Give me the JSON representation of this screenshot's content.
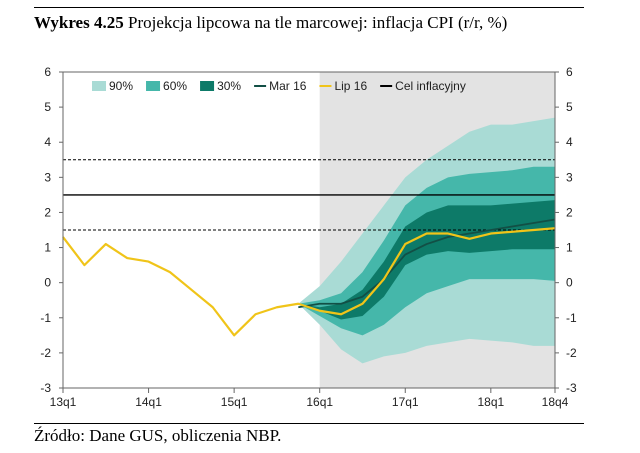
{
  "header": {
    "title_bold": "Wykres 4.25",
    "title_rest": " Projekcja lipcowa na tle marcowej: inflacja CPI (r/r, %)"
  },
  "footer": {
    "source": "Źródło: Dane GUS, obliczenia NBP."
  },
  "colors": {
    "band90": "#a9dbd5",
    "band60": "#45b7aa",
    "band30": "#0d7a68",
    "mar16": "#124f45",
    "lip16": "#f0c419",
    "target": "#000000",
    "shade": "#e3e3e3"
  },
  "chart_data": {
    "type": "line",
    "title": "Projekcja lipcowa na tle marcowej: inflacja CPI",
    "ylabel": "r/r, %",
    "ylim": [
      -3,
      6
    ],
    "yticks": [
      -3,
      -2,
      -1,
      0,
      1,
      2,
      3,
      4,
      5,
      6
    ],
    "x_range": [
      "13q1",
      "18q4"
    ],
    "x_ticks": [
      {
        "label": "13q1",
        "x": 0
      },
      {
        "label": "14q1",
        "x": 4
      },
      {
        "label": "15q1",
        "x": 8
      },
      {
        "label": "16q1",
        "x": 12
      },
      {
        "label": "17q1",
        "x": 16
      },
      {
        "label": "18q1",
        "x": 20
      },
      {
        "label": "18q4",
        "x": 23
      }
    ],
    "projection_start": "16q1",
    "legend": [
      "90%",
      "60%",
      "30%",
      "Mar 16",
      "Lip 16",
      "Cel inflacyjny"
    ],
    "target": {
      "value": 2.5,
      "lower": 1.5,
      "upper": 3.5
    },
    "quarters": [
      "13q1",
      "13q2",
      "13q3",
      "13q4",
      "14q1",
      "14q2",
      "14q3",
      "14q4",
      "15q1",
      "15q2",
      "15q3",
      "15q4",
      "16q1",
      "16q2",
      "16q3",
      "16q4",
      "17q1",
      "17q2",
      "17q3",
      "17q4",
      "18q1",
      "18q2",
      "18q3",
      "18q4"
    ],
    "series": [
      {
        "name": "Mar 16",
        "start": 11,
        "values": [
          -0.7,
          -0.6,
          -0.6,
          -0.4,
          0.1,
          0.8,
          1.1,
          1.3,
          1.4,
          1.5,
          1.6,
          1.7,
          1.8
        ]
      },
      {
        "name": "Lip 16",
        "start": 0,
        "values": [
          1.3,
          0.5,
          1.1,
          0.7,
          0.6,
          0.3,
          -0.2,
          -0.7,
          -1.5,
          -0.9,
          -0.7,
          -0.6,
          -0.8,
          -0.9,
          -0.6,
          0.1,
          1.1,
          1.4,
          1.4,
          1.25,
          1.4,
          1.45,
          1.5,
          1.55
        ]
      }
    ],
    "fan_chart": {
      "start": 11,
      "center": [
        -0.6,
        -0.8,
        -0.9,
        -0.6,
        0.1,
        1.1,
        1.4,
        1.4,
        1.25,
        1.4,
        1.45,
        1.5,
        1.55
      ],
      "bands": [
        {
          "name": "90%",
          "lower": [
            -0.6,
            -1.2,
            -1.9,
            -2.3,
            -2.1,
            -2.0,
            -1.8,
            -1.7,
            -1.6,
            -1.65,
            -1.7,
            -1.8,
            -1.8
          ],
          "upper": [
            -0.6,
            -0.1,
            0.6,
            1.4,
            2.2,
            3.0,
            3.5,
            3.9,
            4.3,
            4.5,
            4.5,
            4.6,
            4.7
          ]
        },
        {
          "name": "60%",
          "lower": [
            -0.6,
            -0.95,
            -1.3,
            -1.5,
            -1.2,
            -0.7,
            -0.3,
            -0.1,
            0.1,
            0.1,
            0.1,
            0.1,
            0.05
          ],
          "upper": [
            -0.6,
            -0.5,
            -0.3,
            0.3,
            1.2,
            2.2,
            2.7,
            3.0,
            3.1,
            3.15,
            3.2,
            3.3,
            3.3
          ]
        },
        {
          "name": "30%",
          "lower": [
            -0.6,
            -0.8,
            -1.05,
            -0.95,
            -0.4,
            0.5,
            0.8,
            0.9,
            0.85,
            0.9,
            0.95,
            0.95,
            0.95
          ],
          "upper": [
            -0.6,
            -0.7,
            -0.6,
            -0.2,
            0.6,
            1.6,
            2.0,
            2.2,
            2.2,
            2.2,
            2.25,
            2.3,
            2.35
          ]
        }
      ]
    }
  }
}
